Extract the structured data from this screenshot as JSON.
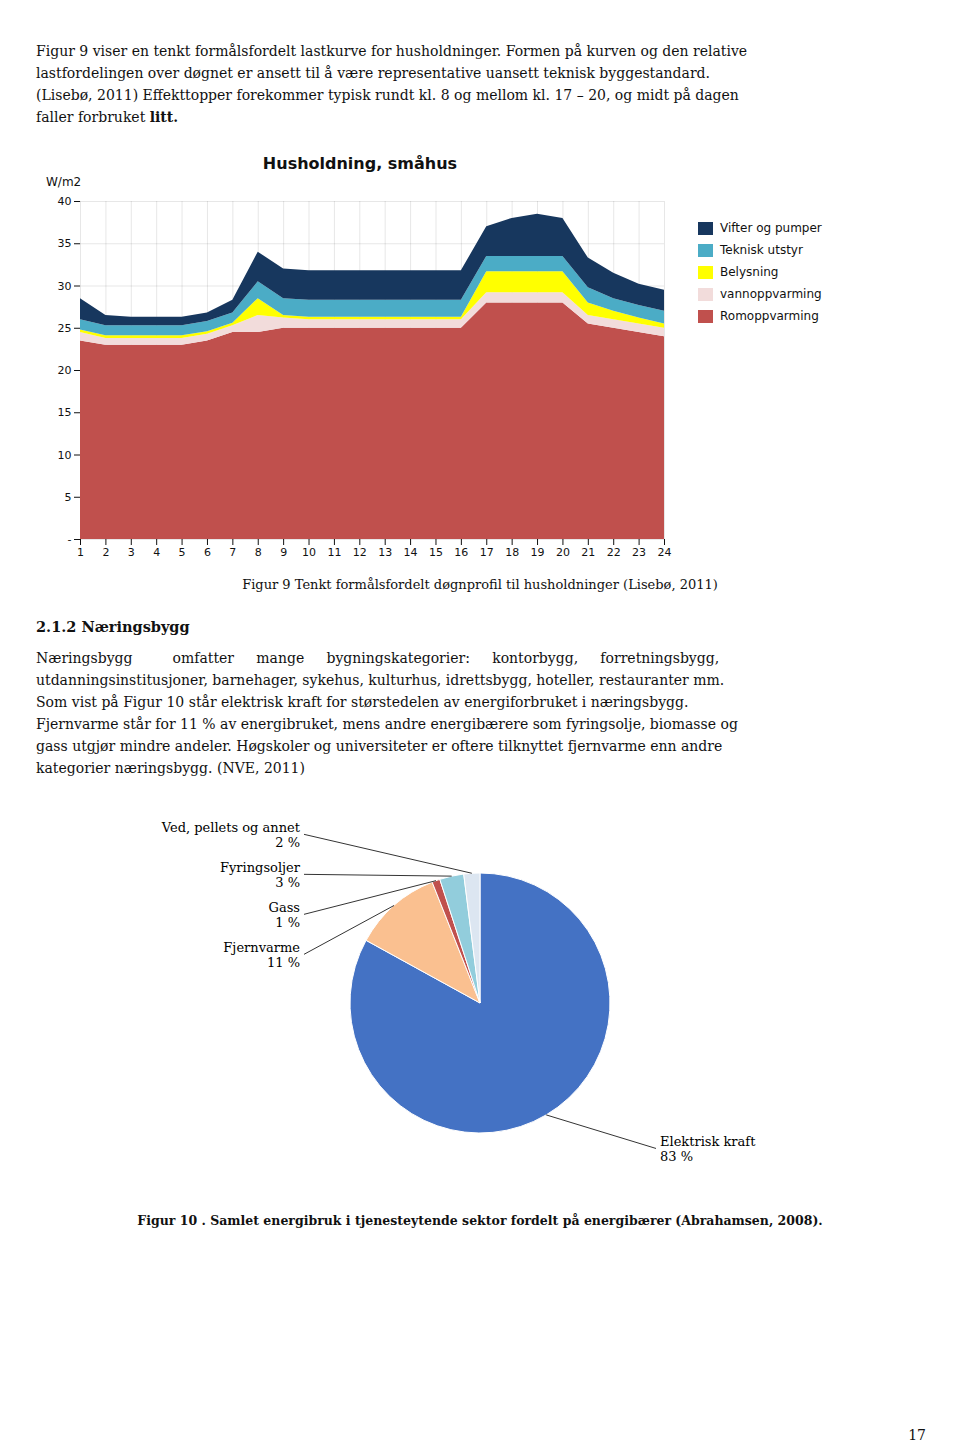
{
  "top_lines": [
    "Figur 9 viser en tenkt formålsfordelt lastkurve for husholdninger. Formen på kurven og den relative",
    "lastfordelingen over døgnet er ansett til å være representative uansett teknisk byggestandard.",
    "(Lisebø, 2011) Effekttopper forekommer typisk rundt kl. 8 og mellom kl. 17 – 20, og midt på dagen",
    "faller forbruket "
  ],
  "top_line_bold_end": "litt.",
  "section_heading": "2.1.2 Næringsbygg",
  "section_lines": [
    "Næringsbygg         omfatter     mange     bygningskategorier:     kontorbygg,     forretningsbygg,",
    "utdanningsinstitusjoner, barnehager, sykehus, kulturhus, idrettsbygg, hoteller, restauranter mm.",
    "Som vist på Figur 10 står elektrisk kraft for størstedelen av energiforbruket i næringsbygg.",
    "Fjernvarme står for 11 % av energibruket, mens andre energibærere som fyringsolje, biomasse og",
    "gass utgjør mindre andeler. Høgskoler og universiteter er oftere tilknyttet fjernvarme enn andre",
    "kategorier næringsbygg. (NVE, 2011)"
  ],
  "page_number": "17",
  "chart_data": [
    {
      "type": "area",
      "title": "Husholdning, småhus",
      "ylabel": "W/m2",
      "caption": "Figur 9 Tenkt formålsfordelt døgnprofil til husholdninger (Lisebø, 2011)",
      "x": [
        1,
        2,
        3,
        4,
        5,
        6,
        7,
        8,
        9,
        10,
        11,
        12,
        13,
        14,
        15,
        16,
        17,
        18,
        19,
        20,
        21,
        22,
        23,
        24
      ],
      "stacked": true,
      "series": [
        {
          "name": "Romoppvarming",
          "color": "#c0504d",
          "values": [
            23.5,
            23.0,
            23.0,
            23.0,
            23.0,
            23.5,
            24.5,
            24.5,
            25.0,
            25.0,
            25.0,
            25.0,
            25.0,
            25.0,
            25.0,
            25.0,
            28.0,
            28.0,
            28.0,
            28.0,
            25.5,
            25.0,
            24.5,
            24.0
          ]
        },
        {
          "name": "vannoppvarming",
          "color": "#f2dcdb",
          "values": [
            1.0,
            0.8,
            0.8,
            0.8,
            0.8,
            0.8,
            0.8,
            2.0,
            1.2,
            1.0,
            1.0,
            1.0,
            1.0,
            1.0,
            1.0,
            1.0,
            1.2,
            1.2,
            1.2,
            1.2,
            1.0,
            1.0,
            1.0,
            1.0
          ]
        },
        {
          "name": "Belysning",
          "color": "#ffff00",
          "values": [
            0.3,
            0.3,
            0.3,
            0.3,
            0.3,
            0.3,
            0.3,
            2.0,
            0.3,
            0.3,
            0.3,
            0.3,
            0.3,
            0.3,
            0.3,
            0.3,
            2.5,
            2.5,
            2.5,
            2.5,
            1.5,
            1.0,
            0.7,
            0.5
          ]
        },
        {
          "name": "Teknisk utstyr",
          "color": "#4bacc6",
          "values": [
            1.2,
            1.2,
            1.2,
            1.2,
            1.2,
            1.2,
            1.2,
            2.0,
            2.0,
            2.0,
            2.0,
            2.0,
            2.0,
            2.0,
            2.0,
            2.0,
            1.8,
            1.8,
            1.8,
            1.8,
            1.8,
            1.5,
            1.5,
            1.5
          ]
        },
        {
          "name": "Vifter og pumper",
          "color": "#17375e",
          "values": [
            2.5,
            1.2,
            1.0,
            1.0,
            1.0,
            1.0,
            1.5,
            3.5,
            3.5,
            3.5,
            3.5,
            3.5,
            3.5,
            3.5,
            3.5,
            3.5,
            3.5,
            4.5,
            5.0,
            4.5,
            3.5,
            3.0,
            2.5,
            2.5
          ]
        }
      ],
      "xlim": [
        1,
        24
      ],
      "xticks": [
        1,
        2,
        3,
        4,
        5,
        6,
        7,
        8,
        9,
        10,
        11,
        12,
        13,
        14,
        15,
        16,
        17,
        18,
        19,
        20,
        21,
        22,
        23,
        24
      ],
      "ylim": [
        0,
        40
      ],
      "yticks": [
        {
          "value": 0,
          "label": "-"
        },
        5,
        10,
        15,
        20,
        25,
        30,
        35,
        40
      ],
      "grid": true,
      "legend": "right"
    },
    {
      "type": "pie",
      "categories": [
        "Elektrisk kraft",
        "Fjernvarme",
        "Gass",
        "Fyringsoljer",
        "Ved, pellets og annet"
      ],
      "values": [
        83,
        11,
        1,
        3,
        2
      ],
      "value_labels": [
        "83 %",
        "11 %",
        "1 %",
        "3 %",
        "2 %"
      ],
      "colors": [
        "#4472c4",
        "#fac090",
        "#c0504d",
        "#92cddc",
        "#dce6f1"
      ],
      "data_labels": true,
      "caption": "Figur 10 . Samlet energibruk i tjenesteytende sektor fordelt på energibærer (Abrahamsen, 2008)."
    }
  ]
}
